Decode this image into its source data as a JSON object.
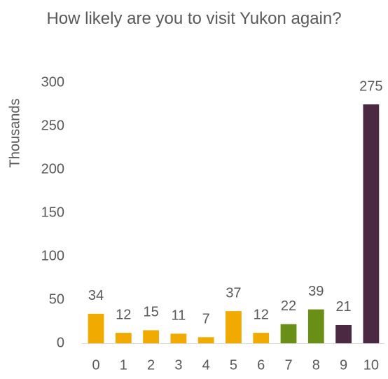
{
  "chart_data": {
    "type": "bar",
    "title": "How likely are you to visit Yukon again?",
    "y_label": "Thousands",
    "categories": [
      "0",
      "1",
      "2",
      "3",
      "4",
      "5",
      "6",
      "7",
      "8",
      "9",
      "10"
    ],
    "values": [
      34,
      12,
      15,
      11,
      7,
      37,
      12,
      22,
      39,
      21,
      275
    ],
    "colors": [
      "#f0aa00",
      "#f0aa00",
      "#f0aa00",
      "#f0aa00",
      "#f0aa00",
      "#f0aa00",
      "#f0aa00",
      "#6a8f16",
      "#6a8f16",
      "#4b2942",
      "#4b2942"
    ],
    "ylim": [
      0,
      300
    ],
    "yticks": [
      0,
      50,
      100,
      150,
      200,
      250,
      300
    ],
    "grid": false
  }
}
